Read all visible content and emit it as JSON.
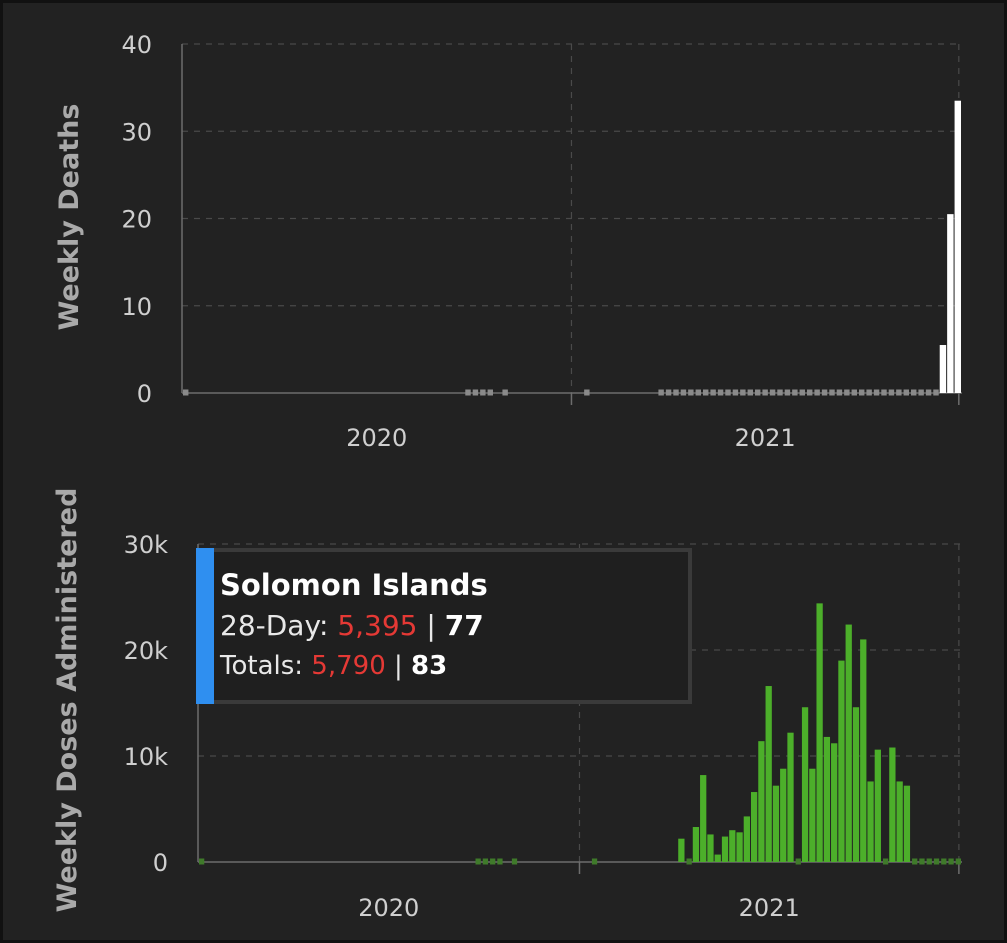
{
  "tooltip": {
    "title": "Solomon Islands",
    "row1_label": "28-Day: ",
    "row1_red": "5,395",
    "row1_sep": " | ",
    "row1_bold": "77",
    "row2_label": "Totals: ",
    "row2_red": "5,790",
    "row2_sep": " | ",
    "row2_bold": "83",
    "accent_color": "#2f8ff0",
    "red_color": "#e53935"
  },
  "chart_data": [
    {
      "type": "bar",
      "ylabel": "Weekly Deaths",
      "ylim": [
        0,
        40
      ],
      "yticks": [
        {
          "value": 0,
          "label": "0"
        },
        {
          "value": 10,
          "label": "10"
        },
        {
          "value": 20,
          "label": "20"
        },
        {
          "value": 30,
          "label": "30"
        },
        {
          "value": 40,
          "label": "40"
        }
      ],
      "xticks": [
        "2020",
        "2021"
      ],
      "grid": true,
      "bar_color": "#ffffff",
      "zero_marker_color": "#8a8a8a",
      "x": [
        "2019-12-30",
        "2020-09-21",
        "2020-09-28",
        "2020-10-05",
        "2020-10-12",
        "2020-10-26",
        "2021-01-11",
        "2021-03-22",
        "2021-03-29",
        "2021-04-05",
        "2021-04-12",
        "2021-04-19",
        "2021-04-26",
        "2021-05-03",
        "2021-05-10",
        "2021-05-17",
        "2021-05-24",
        "2021-05-31",
        "2021-06-07",
        "2021-06-14",
        "2021-06-21",
        "2021-06-28",
        "2021-07-05",
        "2021-07-12",
        "2021-07-19",
        "2021-07-26",
        "2021-08-02",
        "2021-08-09",
        "2021-08-16",
        "2021-08-23",
        "2021-08-30",
        "2021-09-06",
        "2021-09-13",
        "2021-09-20",
        "2021-09-27",
        "2021-10-04",
        "2021-10-11",
        "2021-10-18",
        "2021-10-25",
        "2021-11-01",
        "2021-11-08",
        "2021-11-15",
        "2021-11-22",
        "2021-11-29",
        "2021-12-06",
        "2021-12-13",
        "2021-12-20",
        "2021-12-27"
      ],
      "values": [
        0,
        0,
        0,
        0,
        0,
        0,
        0,
        0,
        0,
        0,
        0,
        0,
        0,
        0,
        0,
        0,
        0,
        0,
        0,
        0,
        0,
        0,
        0,
        0,
        0,
        0,
        0,
        0,
        0,
        0,
        0,
        0,
        0,
        0,
        0,
        0,
        0,
        0,
        0,
        0,
        0,
        0,
        0,
        0,
        0,
        5.5,
        20.5,
        33.5
      ]
    },
    {
      "type": "bar",
      "ylabel": "Weekly Doses Administered",
      "ylim": [
        0,
        30000
      ],
      "yticks": [
        {
          "value": 0,
          "label": "0"
        },
        {
          "value": 10000,
          "label": "10k"
        },
        {
          "value": 20000,
          "label": "20k"
        },
        {
          "value": 30000,
          "label": "30k"
        }
      ],
      "xticks": [
        "2020",
        "2021"
      ],
      "grid": true,
      "bar_color": "#4caf2a",
      "zero_marker_color": "#3f7a2a",
      "x": [
        "2019-12-30",
        "2020-09-21",
        "2020-09-28",
        "2020-10-05",
        "2020-10-12",
        "2020-10-26",
        "2021-01-11",
        "2021-04-05",
        "2021-04-12",
        "2021-04-19",
        "2021-04-26",
        "2021-05-03",
        "2021-05-10",
        "2021-05-17",
        "2021-05-24",
        "2021-05-31",
        "2021-06-07",
        "2021-06-14",
        "2021-06-21",
        "2021-06-28",
        "2021-07-05",
        "2021-07-12",
        "2021-07-19",
        "2021-07-26",
        "2021-08-02",
        "2021-08-09",
        "2021-08-16",
        "2021-08-23",
        "2021-08-30",
        "2021-09-06",
        "2021-09-13",
        "2021-09-20",
        "2021-09-27",
        "2021-10-04",
        "2021-10-11",
        "2021-10-18",
        "2021-10-25",
        "2021-11-01",
        "2021-11-08",
        "2021-11-15",
        "2021-11-22",
        "2021-11-29",
        "2021-12-06",
        "2021-12-13",
        "2021-12-20",
        "2021-12-27"
      ],
      "values": [
        0,
        0,
        0,
        0,
        0,
        0,
        0,
        2200,
        0,
        3300,
        8200,
        2600,
        700,
        2400,
        3000,
        2800,
        4300,
        6600,
        11400,
        16600,
        7200,
        8800,
        12200,
        0,
        14600,
        8800,
        24400,
        11800,
        11200,
        19000,
        22400,
        14600,
        21000,
        7600,
        10600,
        0,
        10800,
        7600,
        7200,
        0,
        0,
        0,
        0,
        0,
        0,
        0
      ]
    }
  ]
}
